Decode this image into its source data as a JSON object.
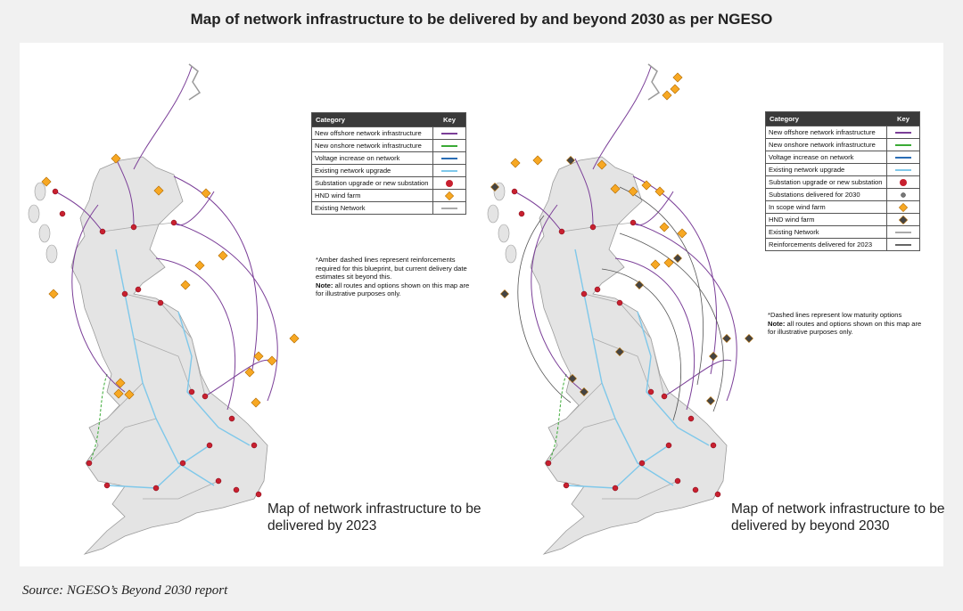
{
  "title": "Map of network infrastructure to be delivered by and beyond 2030 as per NGESO",
  "maps": [
    {
      "caption": "Map of network infrastructure to be delivered by 2023",
      "legend": {
        "header": [
          "Category",
          "Key"
        ],
        "rows": [
          {
            "category": "New offshore network infrastructure",
            "key": {
              "shape": "line",
              "color": "#7b3f98"
            }
          },
          {
            "category": "New onshore network infrastructure",
            "key": {
              "shape": "line",
              "color": "#3aaa35"
            }
          },
          {
            "category": "Voltage increase on network",
            "key": {
              "shape": "line",
              "color": "#2a6db5"
            }
          },
          {
            "category": "Existing network upgrade",
            "key": {
              "shape": "line",
              "color": "#7fc8ea"
            }
          },
          {
            "category": "Substation upgrade or new substation",
            "key": {
              "shape": "dot",
              "color": "#c8202f"
            }
          },
          {
            "category": "HND wind farm",
            "key": {
              "shape": "diamond",
              "color": "#f7a823"
            }
          },
          {
            "category": "Existing Network",
            "key": {
              "shape": "line",
              "color": "#aaaaaa"
            }
          }
        ]
      },
      "notes": [
        {
          "text": "*Amber dashed lines represent reinforcements required for this blueprint, but current delivery date estimates sit beyond this."
        },
        {
          "label": "Note:",
          "text": "all routes and options shown on this map are for illustrative purposes only."
        }
      ]
    },
    {
      "caption": "Map of network infrastructure to be delivered by beyond 2030",
      "legend": {
        "header": [
          "Category",
          "Key"
        ],
        "rows": [
          {
            "category": "New offshore network infrastructure",
            "key": {
              "shape": "line",
              "color": "#7b3f98"
            }
          },
          {
            "category": "New onshore network infrastructure",
            "key": {
              "shape": "line",
              "color": "#3aaa35"
            }
          },
          {
            "category": "Voltage increase on network",
            "key": {
              "shape": "line",
              "color": "#2a6db5"
            }
          },
          {
            "category": "Existing network upgrade",
            "key": {
              "shape": "line",
              "color": "#7fc8ea"
            }
          },
          {
            "category": "Substation upgrade or new substation",
            "key": {
              "shape": "dot",
              "color": "#c8202f"
            }
          },
          {
            "category": "Substations delivered for 2030",
            "key": {
              "shape": "small-dot",
              "color": "#777777"
            }
          },
          {
            "category": "In scope wind farm",
            "key": {
              "shape": "diamond",
              "color": "#f7a823"
            }
          },
          {
            "category": "HND wind farm",
            "key": {
              "shape": "diamond",
              "color": "#444444"
            }
          },
          {
            "category": "Existing Network",
            "key": {
              "shape": "line",
              "color": "#aaaaaa"
            }
          },
          {
            "category": "Reinforcements delivered for 2023",
            "key": {
              "shape": "line",
              "color": "#666666"
            }
          }
        ]
      },
      "notes": [
        {
          "text": "*Dashed lines represent low maturity options"
        },
        {
          "label": "Note:",
          "text": "all routes and options shown on this map are for illustrative purposes only."
        }
      ]
    }
  ],
  "source": "Source: NGESO’s Beyond 2030 report"
}
